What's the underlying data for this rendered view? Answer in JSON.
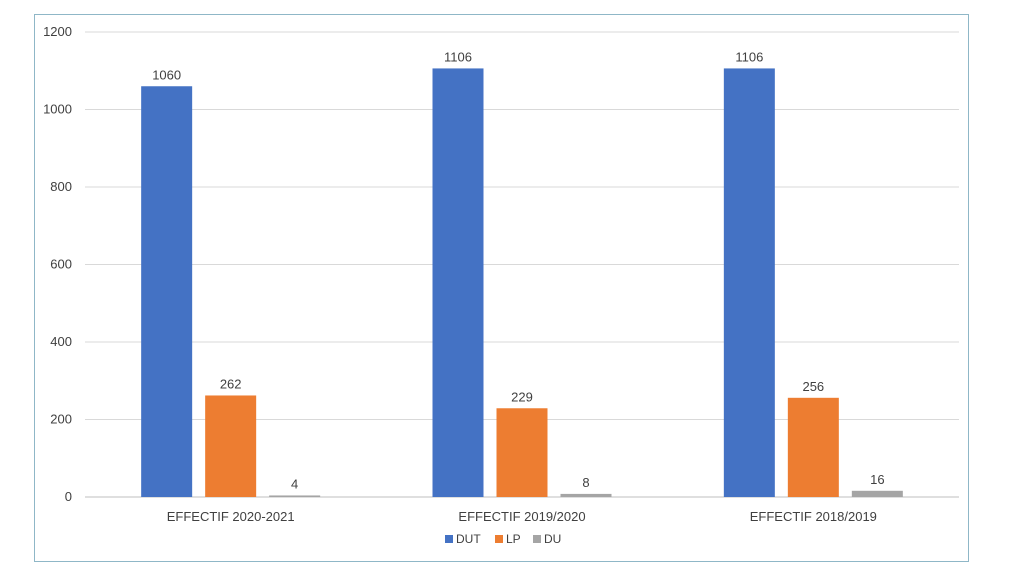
{
  "chart_data": {
    "type": "bar",
    "categories": [
      "EFFECTIF 2020-2021",
      "EFFECTIF 2019/2020",
      "EFFECTIF 2018/2019"
    ],
    "series": [
      {
        "name": "DUT",
        "values": [
          1060,
          1106,
          1106
        ],
        "color": "#4472c4"
      },
      {
        "name": "LP",
        "values": [
          262,
          229,
          256
        ],
        "color": "#ed7d31"
      },
      {
        "name": "DU",
        "values": [
          4,
          8,
          16
        ],
        "color": "#a5a5a5"
      }
    ],
    "ylim": [
      0,
      1200
    ],
    "yticks": [
      0,
      200,
      400,
      600,
      800,
      1000,
      1200
    ],
    "grid": true,
    "legend": "bottom-center",
    "data_labels": true
  }
}
